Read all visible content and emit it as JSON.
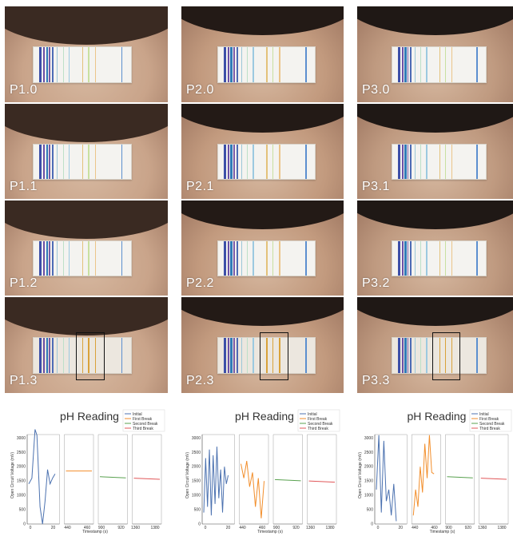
{
  "photos": [
    {
      "label": "P1.0",
      "highlight": false
    },
    {
      "label": "P2.0",
      "highlight": false
    },
    {
      "label": "P3.0",
      "highlight": false
    },
    {
      "label": "P1.1",
      "highlight": false
    },
    {
      "label": "P2.1",
      "highlight": false
    },
    {
      "label": "P3.1",
      "highlight": false
    },
    {
      "label": "P1.2",
      "highlight": false
    },
    {
      "label": "P2.2",
      "highlight": false
    },
    {
      "label": "P3.2",
      "highlight": false
    },
    {
      "label": "P1.3",
      "highlight": true
    },
    {
      "label": "P2.3",
      "highlight": true
    },
    {
      "label": "P3.3",
      "highlight": true
    }
  ],
  "charts": [
    {
      "title": "pH Reading",
      "ylabel": "Open Circuit Voltage (mV)",
      "xlabel": "Timestamp (s)",
      "yticks": [
        "0",
        "500",
        "1000",
        "1500",
        "2000",
        "2500",
        "3000"
      ],
      "xticks": [
        "0",
        "20",
        "440",
        "460",
        "900",
        "920",
        "1360",
        "1380"
      ],
      "legend": [
        "Initial",
        "First Break",
        "Second Break",
        "Third Break"
      ]
    },
    {
      "title": "pH Reading",
      "ylabel": "Open Circuit Voltage (mV)",
      "xlabel": "Timestamp (s)",
      "yticks": [
        "0",
        "500",
        "1000",
        "1500",
        "2000",
        "2500",
        "3000"
      ],
      "xticks": [
        "0",
        "20",
        "440",
        "460",
        "900",
        "920",
        "1360",
        "1380"
      ],
      "legend": [
        "Initial",
        "First Break",
        "Second Break",
        "Third Break"
      ]
    },
    {
      "title": "pH Reading",
      "ylabel": "Open Circuit Voltage (mV)",
      "xlabel": "Timestamp (s)",
      "yticks": [
        "0",
        "500",
        "1000",
        "1500",
        "2000",
        "2500",
        "3000"
      ],
      "xticks": [
        "0",
        "20",
        "440",
        "460",
        "900",
        "920",
        "1360",
        "1380"
      ],
      "legend": [
        "Initial",
        "First Break",
        "Second Break",
        "Third Break"
      ]
    }
  ],
  "colors": {
    "initial": "#4c72b0",
    "first": "#f28e2b",
    "second": "#59a14f",
    "third": "#e15759"
  }
}
